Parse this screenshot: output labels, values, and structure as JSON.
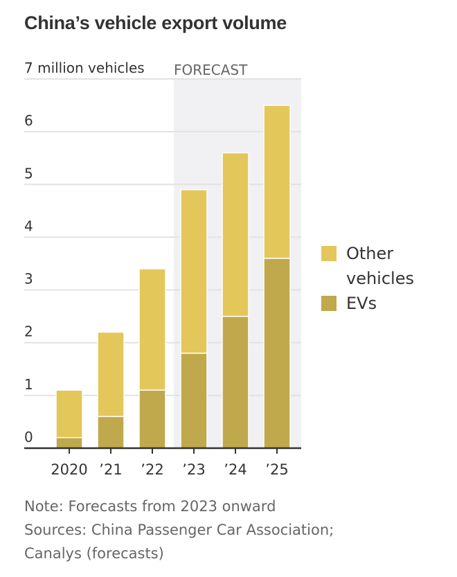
{
  "chart_data": {
    "type": "bar",
    "stacked": true,
    "title": "China’s vehicle export volume",
    "ylabel": "million vehicles",
    "ylabel_display": "7 million vehicles",
    "ylim": [
      0,
      7
    ],
    "yticks": [
      0,
      1,
      2,
      3,
      4,
      5,
      6,
      7
    ],
    "ytick_labels": [
      "0",
      "1",
      "2",
      "3",
      "4",
      "5",
      "6",
      "7 million vehicles"
    ],
    "categories": [
      "2020",
      "’21",
      "’22",
      "’23",
      "’24",
      "’25"
    ],
    "series": [
      {
        "name": "EVs",
        "color": "#c0a84c",
        "values": [
          0.2,
          0.6,
          1.1,
          1.8,
          2.5,
          3.6
        ]
      },
      {
        "name": "Other vehicles",
        "color": "#e3c75a",
        "values": [
          0.9,
          1.6,
          2.3,
          3.1,
          3.1,
          2.9
        ]
      }
    ],
    "totals": [
      1.1,
      2.2,
      3.4,
      4.9,
      5.6,
      6.5
    ],
    "forecast": {
      "label": "FORECAST",
      "from_category": "’23",
      "shade_color": "#f1f1f3"
    },
    "grid": true,
    "legend": {
      "placement": "right",
      "entries": [
        "Other vehicles",
        "EVs"
      ]
    }
  },
  "title": "China’s vehicle export volume",
  "legend": {
    "other": "Other",
    "other_line2": "vehicles",
    "evs": "EVs",
    "other_color": "#e3c75a",
    "evs_color": "#c0a84c"
  },
  "notes": {
    "note": "Note: Forecasts from 2023 onward",
    "sources_line1": "Sources: China Passenger Car Association;",
    "sources_line2": "Canalys (forecasts)"
  }
}
